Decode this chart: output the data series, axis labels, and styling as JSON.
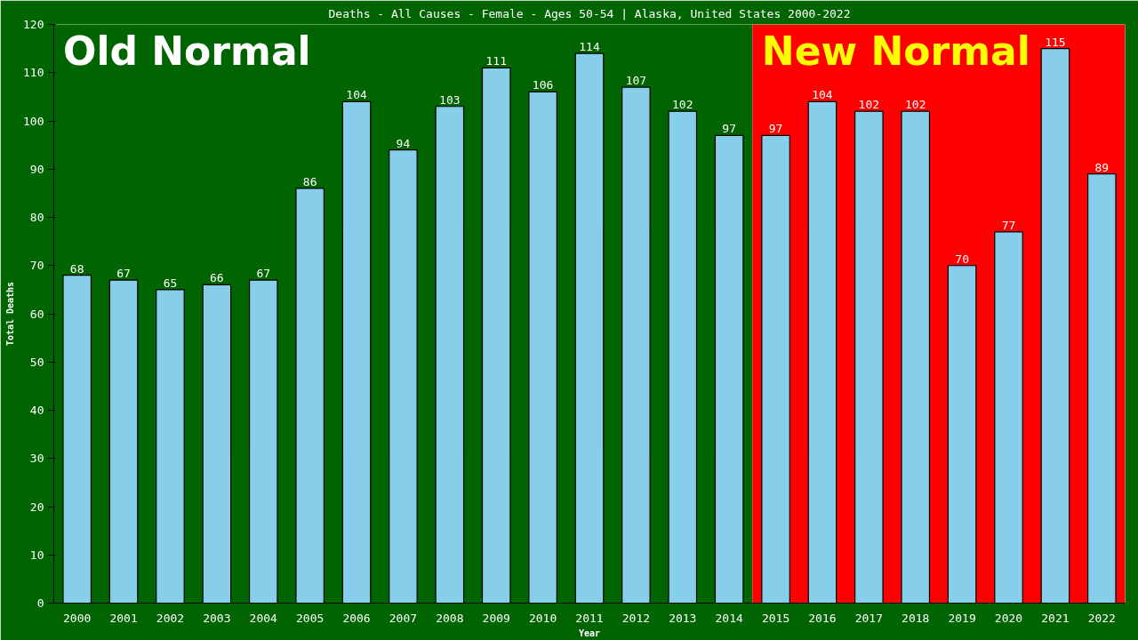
{
  "chart_data": {
    "type": "bar",
    "title": "Deaths - All Causes - Female - Ages 50-54 | Alaska, United States 2000-2022",
    "xlabel": "Year",
    "ylabel": "Total Deaths",
    "categories": [
      "2000",
      "2001",
      "2002",
      "2003",
      "2004",
      "2005",
      "2006",
      "2007",
      "2008",
      "2009",
      "2010",
      "2011",
      "2012",
      "2013",
      "2014",
      "2015",
      "2016",
      "2017",
      "2018",
      "2019",
      "2020",
      "2021",
      "2022"
    ],
    "values": [
      68,
      67,
      65,
      66,
      67,
      86,
      104,
      94,
      103,
      111,
      106,
      114,
      107,
      102,
      97,
      97,
      104,
      102,
      102,
      70,
      77,
      115,
      89
    ],
    "color": "#87ceeb",
    "ylim": [
      0,
      120
    ],
    "yticks": [
      0,
      10,
      20,
      30,
      40,
      50,
      60,
      70,
      80,
      90,
      100,
      110,
      120
    ],
    "bands": [
      {
        "axis": "x",
        "from": "2000",
        "to": "2014",
        "label": "Old Normal",
        "color": "#006400"
      },
      {
        "axis": "x",
        "from": "2015",
        "to": "2022",
        "label": "New Normal",
        "color": "#ff0000"
      }
    ],
    "data_labels": true,
    "grid": false
  }
}
